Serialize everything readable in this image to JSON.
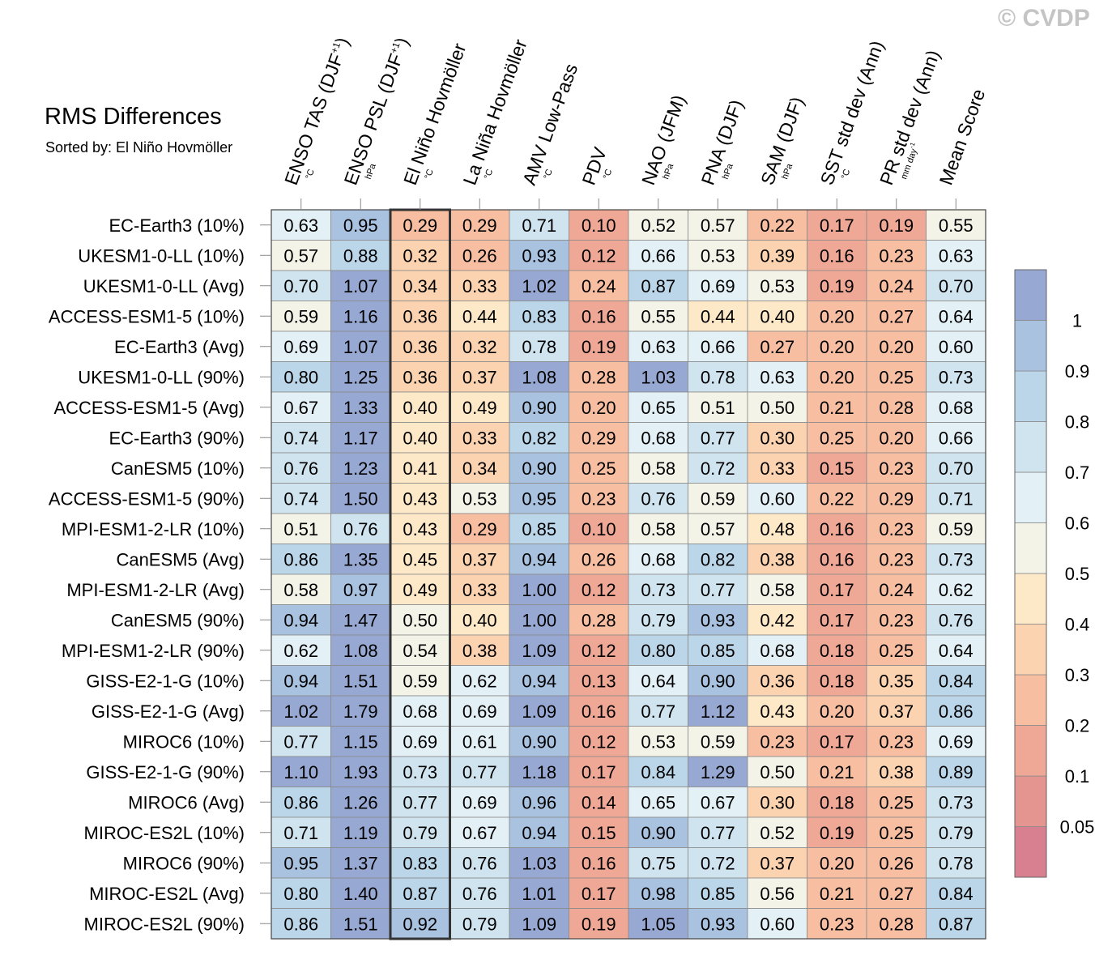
{
  "header": {
    "title": "RMS Differences",
    "subtitle": "Sorted by: El Niño Hovmöller",
    "copyright": "© CVDP"
  },
  "chart_data": {
    "type": "heatmap",
    "metric": "RMS Differences",
    "sorted_by": "El Niño Hovmöller",
    "highlighted_column": 2,
    "columns": [
      {
        "label": "ENSO TAS (DJF",
        "sup": "+1",
        "label_end": ")",
        "unit": "°C"
      },
      {
        "label": "ENSO PSL (DJF",
        "sup": "+1",
        "label_end": ")",
        "unit": "hPa"
      },
      {
        "label": "El Niño Hovmöller",
        "sup": "",
        "label_end": "",
        "unit": "°C"
      },
      {
        "label": "La Niña Hovmöller",
        "sup": "",
        "label_end": "",
        "unit": "°C"
      },
      {
        "label": "AMV Low-Pass",
        "sup": "",
        "label_end": "",
        "unit": "°C"
      },
      {
        "label": "PDV",
        "sup": "",
        "label_end": "",
        "unit": "°C"
      },
      {
        "label": "NAO (JFM)",
        "sup": "",
        "label_end": "",
        "unit": "hPa"
      },
      {
        "label": "PNA (DJF)",
        "sup": "",
        "label_end": "",
        "unit": "hPa"
      },
      {
        "label": "SAM (DJF)",
        "sup": "",
        "label_end": "",
        "unit": "hPa"
      },
      {
        "label": "SST std dev (Ann)",
        "sup": "",
        "label_end": "",
        "unit": "°C"
      },
      {
        "label": "PR std dev (Ann)",
        "sup": "",
        "label_end": "",
        "unit": "mm day",
        "unit_sup": "-1"
      },
      {
        "label": "Mean Score",
        "sup": "",
        "label_end": "",
        "unit": ""
      }
    ],
    "rows": [
      {
        "label": "EC-Earth3 (10%)",
        "values": [
          0.63,
          0.95,
          0.29,
          0.29,
          0.71,
          0.1,
          0.52,
          0.57,
          0.22,
          0.17,
          0.19,
          0.55
        ]
      },
      {
        "label": "UKESM1-0-LL (10%)",
        "values": [
          0.57,
          0.88,
          0.32,
          0.26,
          0.93,
          0.12,
          0.66,
          0.53,
          0.39,
          0.16,
          0.23,
          0.63
        ]
      },
      {
        "label": "UKESM1-0-LL (Avg)",
        "values": [
          0.7,
          1.07,
          0.34,
          0.33,
          1.02,
          0.24,
          0.87,
          0.69,
          0.53,
          0.19,
          0.24,
          0.7
        ]
      },
      {
        "label": "ACCESS-ESM1-5 (10%)",
        "values": [
          0.59,
          1.16,
          0.36,
          0.44,
          0.83,
          0.16,
          0.55,
          0.44,
          0.4,
          0.2,
          0.27,
          0.64
        ]
      },
      {
        "label": "EC-Earth3 (Avg)",
        "values": [
          0.69,
          1.07,
          0.36,
          0.32,
          0.78,
          0.19,
          0.63,
          0.66,
          0.27,
          0.2,
          0.2,
          0.6
        ]
      },
      {
        "label": "UKESM1-0-LL (90%)",
        "values": [
          0.8,
          1.25,
          0.36,
          0.37,
          1.08,
          0.28,
          1.03,
          0.78,
          0.63,
          0.2,
          0.25,
          0.73
        ]
      },
      {
        "label": "ACCESS-ESM1-5 (Avg)",
        "values": [
          0.67,
          1.33,
          0.4,
          0.49,
          0.9,
          0.2,
          0.65,
          0.51,
          0.5,
          0.21,
          0.28,
          0.68
        ]
      },
      {
        "label": "EC-Earth3 (90%)",
        "values": [
          0.74,
          1.17,
          0.4,
          0.33,
          0.82,
          0.29,
          0.68,
          0.77,
          0.3,
          0.25,
          0.2,
          0.66
        ]
      },
      {
        "label": "CanESM5 (10%)",
        "values": [
          0.76,
          1.23,
          0.41,
          0.34,
          0.9,
          0.25,
          0.58,
          0.72,
          0.33,
          0.15,
          0.23,
          0.7
        ]
      },
      {
        "label": "ACCESS-ESM1-5 (90%)",
        "values": [
          0.74,
          1.5,
          0.43,
          0.53,
          0.95,
          0.23,
          0.76,
          0.59,
          0.6,
          0.22,
          0.29,
          0.71
        ]
      },
      {
        "label": "MPI-ESM1-2-LR (10%)",
        "values": [
          0.51,
          0.76,
          0.43,
          0.29,
          0.85,
          0.1,
          0.58,
          0.57,
          0.48,
          0.16,
          0.23,
          0.59
        ]
      },
      {
        "label": "CanESM5 (Avg)",
        "values": [
          0.86,
          1.35,
          0.45,
          0.37,
          0.94,
          0.26,
          0.68,
          0.82,
          0.38,
          0.16,
          0.23,
          0.73
        ]
      },
      {
        "label": "MPI-ESM1-2-LR (Avg)",
        "values": [
          0.58,
          0.97,
          0.49,
          0.33,
          1.0,
          0.12,
          0.73,
          0.77,
          0.58,
          0.17,
          0.24,
          0.62
        ]
      },
      {
        "label": "CanESM5 (90%)",
        "values": [
          0.94,
          1.47,
          0.5,
          0.4,
          1.0,
          0.28,
          0.79,
          0.93,
          0.42,
          0.17,
          0.23,
          0.76
        ]
      },
      {
        "label": "MPI-ESM1-2-LR (90%)",
        "values": [
          0.62,
          1.08,
          0.54,
          0.38,
          1.09,
          0.12,
          0.8,
          0.85,
          0.68,
          0.18,
          0.25,
          0.64
        ]
      },
      {
        "label": "GISS-E2-1-G (10%)",
        "values": [
          0.94,
          1.51,
          0.59,
          0.62,
          0.94,
          0.13,
          0.64,
          0.9,
          0.36,
          0.18,
          0.35,
          0.84
        ]
      },
      {
        "label": "GISS-E2-1-G (Avg)",
        "values": [
          1.02,
          1.79,
          0.68,
          0.69,
          1.09,
          0.16,
          0.77,
          1.12,
          0.43,
          0.2,
          0.37,
          0.86
        ]
      },
      {
        "label": "MIROC6 (10%)",
        "values": [
          0.77,
          1.15,
          0.69,
          0.61,
          0.9,
          0.12,
          0.53,
          0.59,
          0.23,
          0.17,
          0.23,
          0.69
        ]
      },
      {
        "label": "GISS-E2-1-G (90%)",
        "values": [
          1.1,
          1.93,
          0.73,
          0.77,
          1.18,
          0.17,
          0.84,
          1.29,
          0.5,
          0.21,
          0.38,
          0.89
        ]
      },
      {
        "label": "MIROC6 (Avg)",
        "values": [
          0.86,
          1.26,
          0.77,
          0.69,
          0.96,
          0.14,
          0.65,
          0.67,
          0.3,
          0.18,
          0.25,
          0.73
        ]
      },
      {
        "label": "MIROC-ES2L (10%)",
        "values": [
          0.71,
          1.19,
          0.79,
          0.67,
          0.94,
          0.15,
          0.9,
          0.77,
          0.52,
          0.19,
          0.25,
          0.79
        ]
      },
      {
        "label": "MIROC6 (90%)",
        "values": [
          0.95,
          1.37,
          0.83,
          0.76,
          1.03,
          0.16,
          0.75,
          0.72,
          0.37,
          0.2,
          0.26,
          0.78
        ]
      },
      {
        "label": "MIROC-ES2L (Avg)",
        "values": [
          0.8,
          1.4,
          0.87,
          0.76,
          1.01,
          0.17,
          0.98,
          0.85,
          0.56,
          0.21,
          0.27,
          0.84
        ]
      },
      {
        "label": "MIROC-ES2L (90%)",
        "values": [
          0.86,
          1.51,
          0.92,
          0.79,
          1.09,
          0.19,
          1.05,
          0.93,
          0.6,
          0.23,
          0.28,
          0.87
        ]
      }
    ],
    "colorbar": {
      "levels": [
        0.05,
        0.1,
        0.2,
        0.3,
        0.4,
        0.5,
        0.6,
        0.7,
        0.8,
        0.9,
        1
      ],
      "level_labels": [
        "0.05",
        "0.1",
        "0.2",
        "0.3",
        "0.4",
        "0.5",
        "0.6",
        "0.7",
        "0.8",
        "0.9",
        "1"
      ],
      "colors": [
        "#d8808f",
        "#e49590",
        "#f0a896",
        "#f7bea2",
        "#fbd3b0",
        "#fde8c8",
        "#f4f3e8",
        "#e3f0f6",
        "#cfe4ef",
        "#bcd6e9",
        "#a9c2e0",
        "#97a9d3"
      ]
    }
  }
}
